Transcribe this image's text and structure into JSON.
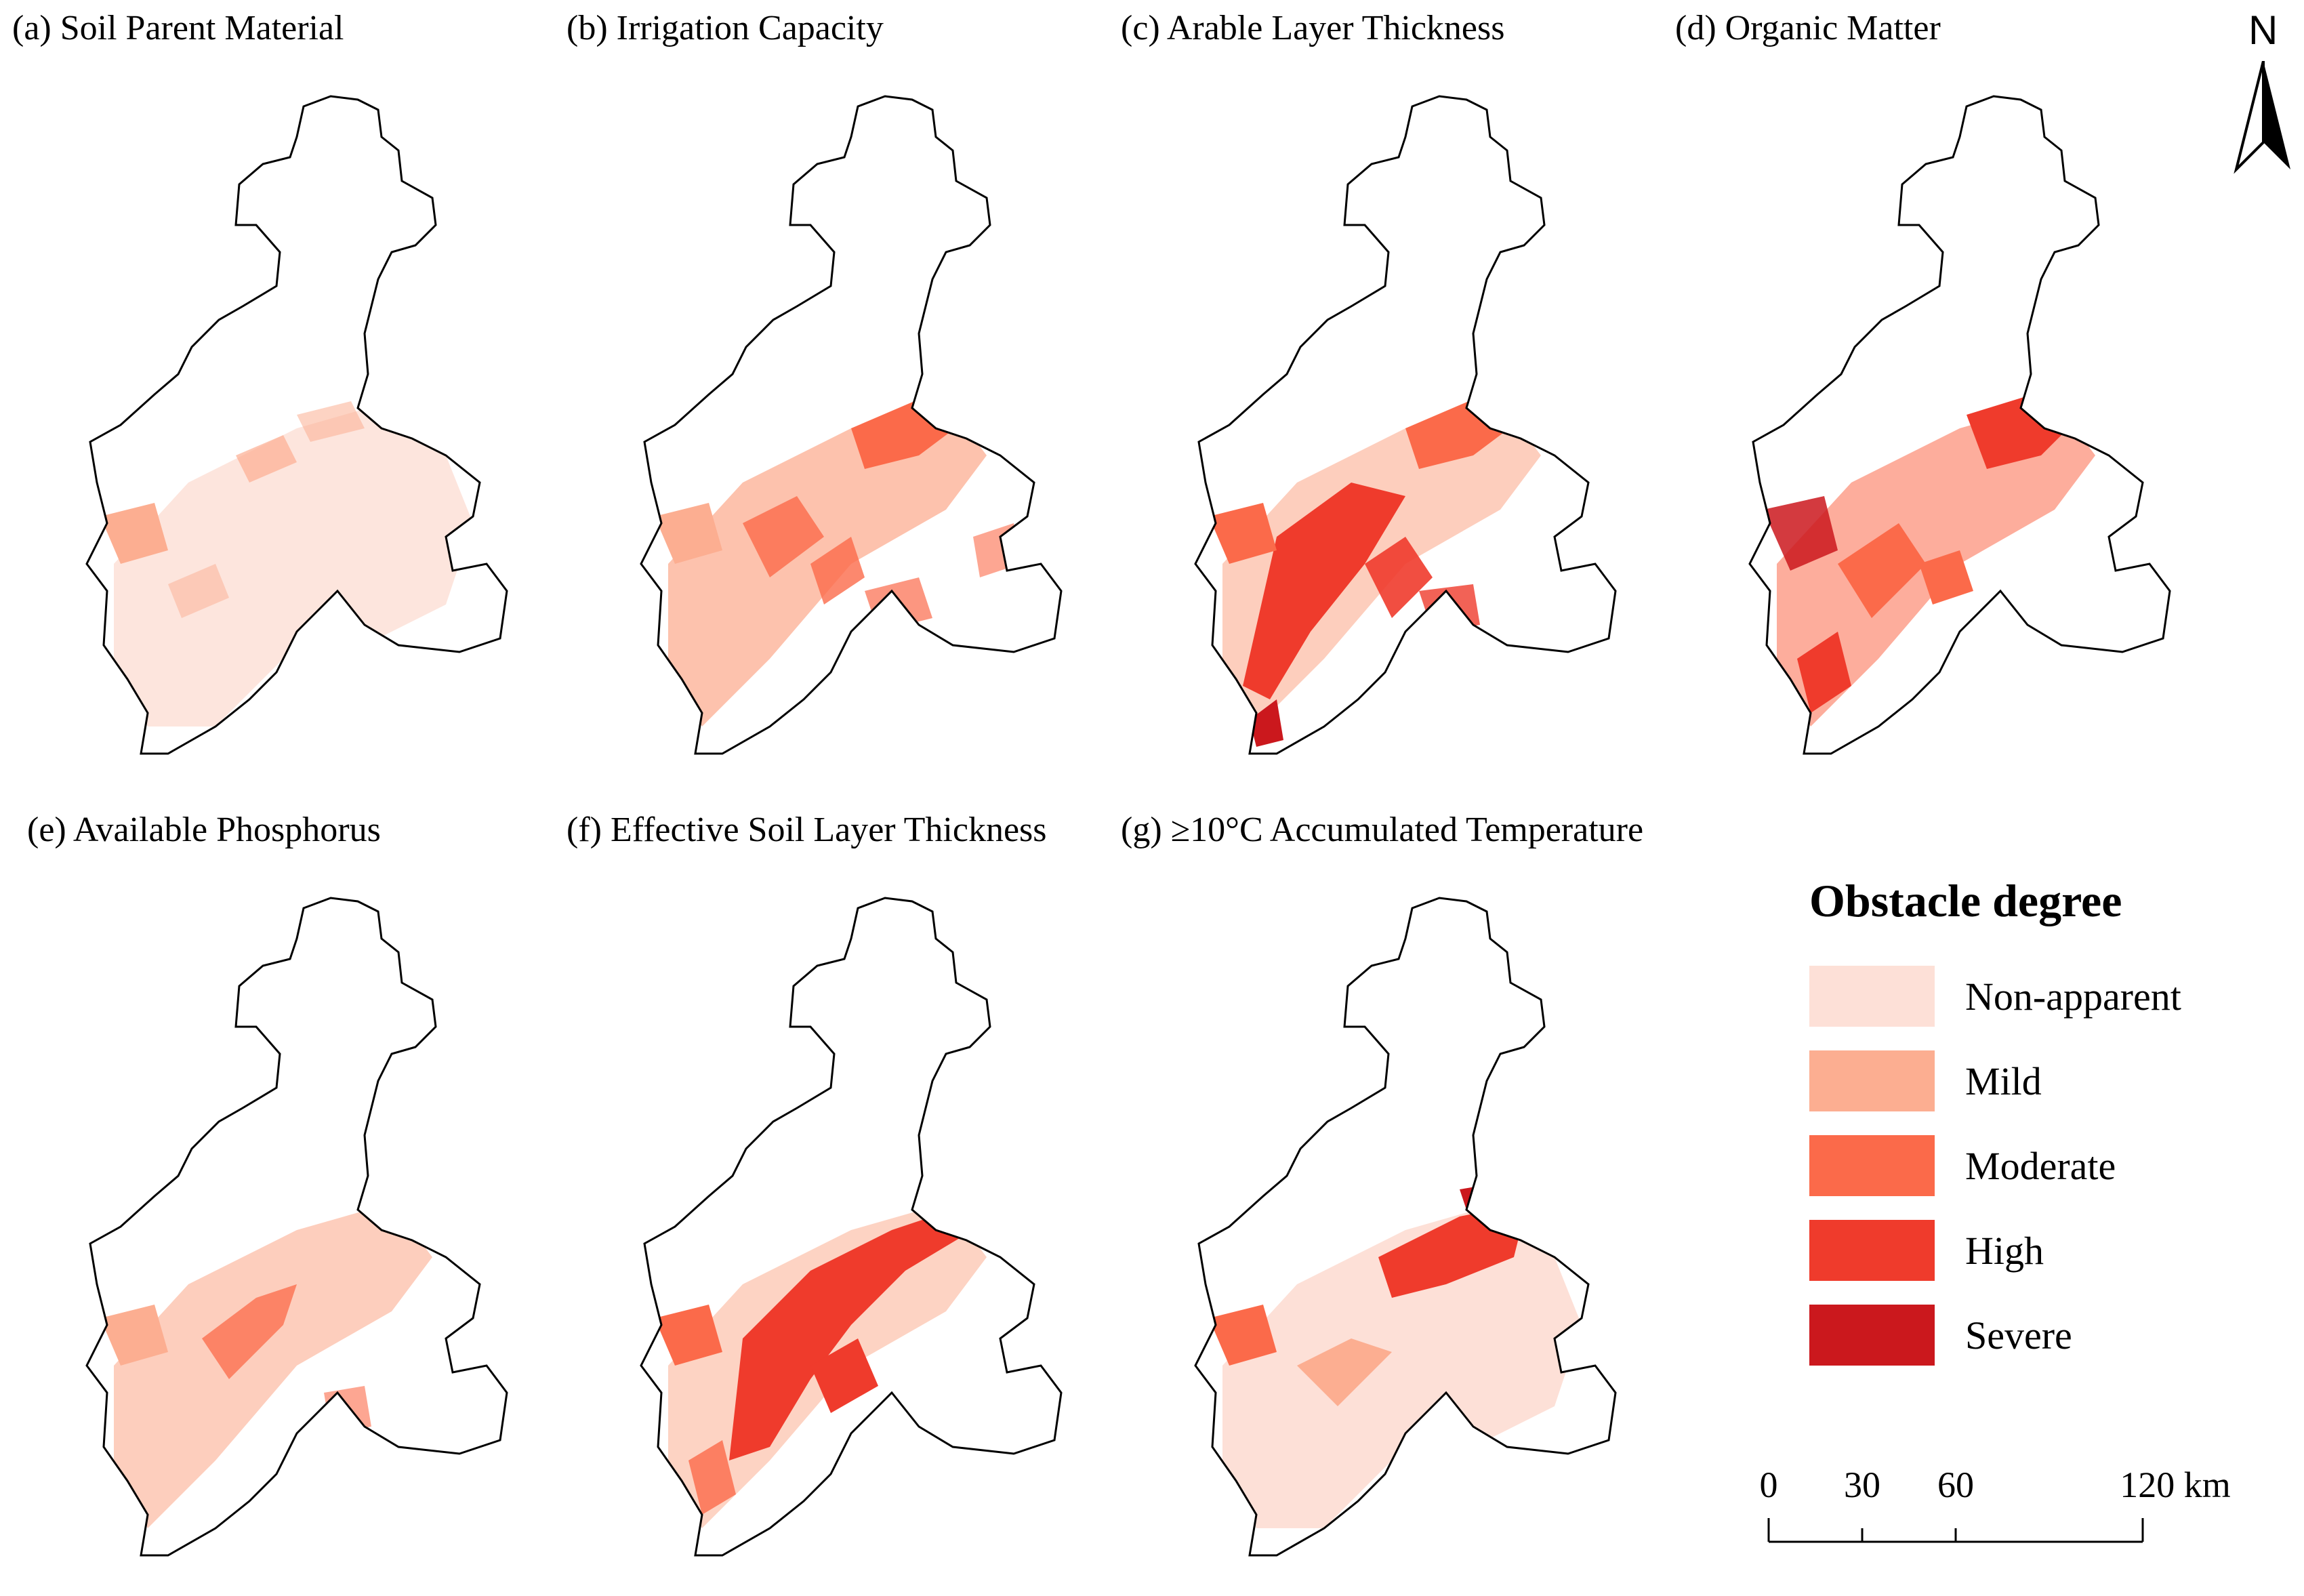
{
  "panels": [
    {
      "id": "a",
      "title": "(a) Soil Parent Material"
    },
    {
      "id": "b",
      "title": "(b) Irrigation Capacity"
    },
    {
      "id": "c",
      "title": "(c) Arable Layer Thickness"
    },
    {
      "id": "d",
      "title": "(d) Organic Matter"
    },
    {
      "id": "e",
      "title": "(e) Available Phosphorus"
    },
    {
      "id": "f",
      "title": "(f) Effective Soil Layer Thickness"
    },
    {
      "id": "g",
      "title": "(g) ≥10°C Accumulated Temperature"
    }
  ],
  "north_arrow": {
    "label": "N"
  },
  "legend": {
    "title": "Obstacle degree",
    "items": [
      {
        "label": "Non-apparent",
        "color": "#fde0d7"
      },
      {
        "label": "Mild",
        "color": "#fcae91"
      },
      {
        "label": "Moderate",
        "color": "#fb6a4a"
      },
      {
        "label": "High",
        "color": "#ef3b2c"
      },
      {
        "label": "Severe",
        "color": "#cb181d"
      }
    ]
  },
  "scale_bar": {
    "ticks": [
      "0",
      "30",
      "60",
      "120 km"
    ]
  }
}
